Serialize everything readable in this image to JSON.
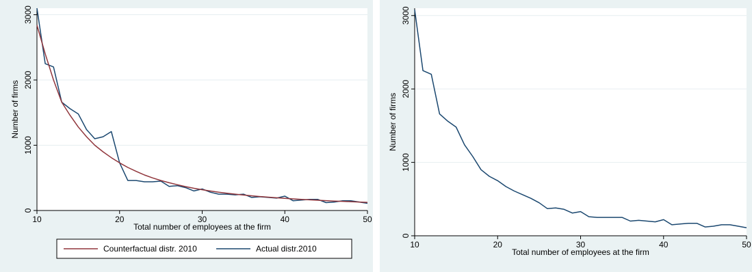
{
  "colors": {
    "panel_bg": "#eaf2f3",
    "plot_bg": "#ffffff",
    "grid": "#e6eef0",
    "axis": "#000000",
    "actual_line": "#1a476f",
    "counterfactual_line": "#90353b"
  },
  "chart_data": [
    {
      "type": "line",
      "title": "",
      "xlabel": "Total number of employees at the firm",
      "ylabel": "Number of firms",
      "xlim": [
        10,
        50
      ],
      "ylim": [
        0,
        3100
      ],
      "xticks": [
        10,
        20,
        30,
        40,
        50
      ],
      "yticks": [
        0,
        1000,
        2000,
        3000
      ],
      "grid": true,
      "legend": "bottom",
      "series": [
        {
          "name": "Counterfactual distr. 2010",
          "color": "#90353b",
          "x": [
            10,
            11,
            12,
            13,
            14,
            15,
            16,
            17,
            18,
            19,
            20,
            21,
            22,
            23,
            24,
            25,
            26,
            27,
            28,
            29,
            30,
            31,
            32,
            33,
            34,
            35,
            36,
            37,
            38,
            39,
            40,
            41,
            42,
            43,
            44,
            45,
            46,
            47,
            48,
            49,
            50
          ],
          "y": [
            2840,
            2400,
            2000,
            1660,
            1460,
            1280,
            1130,
            1000,
            900,
            810,
            730,
            660,
            600,
            545,
            500,
            460,
            425,
            395,
            365,
            340,
            318,
            298,
            280,
            264,
            250,
            237,
            225,
            214,
            204,
            195,
            186,
            178,
            170,
            163,
            157,
            151,
            145,
            140,
            135,
            130,
            125
          ]
        },
        {
          "name": "Actual distr.2010",
          "color": "#1a476f",
          "x": [
            10,
            11,
            12,
            13,
            14,
            15,
            16,
            17,
            18,
            19,
            20,
            21,
            22,
            23,
            24,
            25,
            26,
            27,
            28,
            29,
            30,
            31,
            32,
            33,
            34,
            35,
            36,
            37,
            38,
            39,
            40,
            41,
            42,
            43,
            44,
            45,
            46,
            47,
            48,
            49,
            50
          ],
          "y": [
            3100,
            2250,
            2200,
            1660,
            1560,
            1480,
            1240,
            1100,
            1130,
            1210,
            730,
            460,
            460,
            440,
            440,
            450,
            370,
            380,
            350,
            300,
            330,
            280,
            250,
            250,
            240,
            250,
            200,
            210,
            200,
            190,
            220,
            150,
            160,
            170,
            170,
            120,
            130,
            150,
            150,
            130,
            110
          ]
        }
      ]
    },
    {
      "type": "line",
      "title": "",
      "xlabel": "Total number of employees at the firm",
      "ylabel": "Number of firms",
      "xlim": [
        10,
        50
      ],
      "ylim": [
        0,
        3100
      ],
      "xticks": [
        10,
        20,
        30,
        40,
        50
      ],
      "yticks": [
        0,
        1000,
        2000,
        3000
      ],
      "grid": true,
      "legend": "none",
      "series": [
        {
          "color": "#1a476f",
          "x": [
            10,
            11,
            12,
            13,
            14,
            15,
            16,
            17,
            18,
            19,
            20,
            21,
            22,
            23,
            24,
            25,
            26,
            27,
            28,
            29,
            30,
            31,
            32,
            33,
            34,
            35,
            36,
            37,
            38,
            39,
            40,
            41,
            42,
            43,
            44,
            45,
            46,
            47,
            48,
            49,
            50
          ],
          "y": [
            3080,
            2250,
            2200,
            1660,
            1560,
            1480,
            1240,
            1080,
            900,
            810,
            750,
            670,
            610,
            560,
            510,
            450,
            370,
            380,
            360,
            310,
            330,
            260,
            250,
            250,
            250,
            250,
            200,
            210,
            200,
            190,
            220,
            150,
            160,
            170,
            170,
            120,
            130,
            150,
            150,
            130,
            110
          ]
        }
      ]
    }
  ]
}
